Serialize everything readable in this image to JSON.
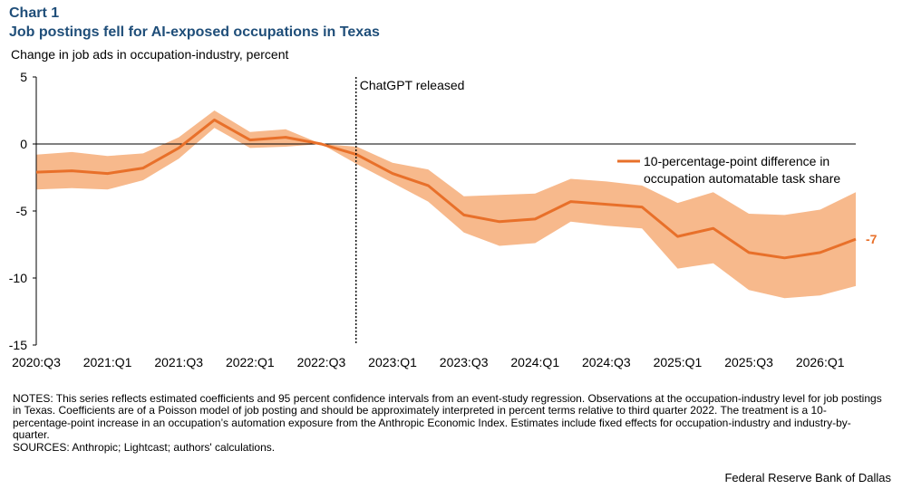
{
  "header": {
    "chart_label": "Chart 1",
    "title": "Job postings fell for AI-exposed occupations in Texas"
  },
  "notes": {
    "text": "NOTES: This series reflects estimated coefficients and 95 percent confidence intervals from an event-study regression. Observations at the occupation-industry level for job postings in Texas. Coefficients are of a Poisson model of job posting and should be approximately interpreted in percent terms relative to third quarter 2022. The treatment is a 10-percentage-point increase in an occupation’s automation exposure from the Anthropic Economic Index. Estimates include fixed effects for occupation-industry and industry-by-quarter.",
    "sources": "SOURCES: Anthropic; Lightcast; authors' calculations."
  },
  "footer": {
    "credit": "Federal Reserve Bank of Dallas"
  },
  "colors": {
    "line": "#e8702a",
    "band": "#f7b98c",
    "title": "#1f4e79",
    "end_label": "#e8702a"
  },
  "chart_data": {
    "type": "line",
    "title": "Job postings fell for AI-exposed occupations in Texas",
    "ylabel": "Change in job ads in occupation-industry,  percent",
    "xlabel": "",
    "ylim": [
      -15,
      5
    ],
    "yticks": [
      5,
      0,
      -5,
      -10,
      -15
    ],
    "x": [
      "2020:Q3",
      "2020:Q4",
      "2021:Q1",
      "2021:Q2",
      "2021:Q3",
      "2021:Q4",
      "2022:Q1",
      "2022:Q2",
      "2022:Q3",
      "2022:Q4",
      "2023:Q1",
      "2023:Q2",
      "2023:Q3",
      "2023:Q4",
      "2024:Q1",
      "2024:Q2",
      "2024:Q3",
      "2024:Q4",
      "2025:Q1",
      "2025:Q2",
      "2025:Q3",
      "2025:Q4",
      "2026:Q1",
      "2026:Q2"
    ],
    "xtick_labels": [
      "2020:Q3",
      "2021:Q1",
      "2021:Q3",
      "2022:Q1",
      "2022:Q3",
      "2023:Q1",
      "2023:Q3",
      "2024:Q1",
      "2024:Q3",
      "2025:Q1",
      "2025:Q3",
      "2026:Q1"
    ],
    "series": [
      {
        "name": "10-percentage-point difference in occupation automatable task share",
        "values": [
          -2.1,
          -2.0,
          -2.2,
          -1.8,
          -0.3,
          1.8,
          0.3,
          0.5,
          0.0,
          -0.8,
          -2.2,
          -3.1,
          -5.3,
          -5.8,
          -5.6,
          -4.3,
          -4.5,
          -4.7,
          -6.9,
          -6.3,
          -8.1,
          -8.5,
          -8.1,
          -7.1
        ],
        "lower": [
          -3.4,
          -3.3,
          -3.4,
          -2.7,
          -1.1,
          1.2,
          -0.3,
          -0.2,
          0.0,
          -1.5,
          -2.9,
          -4.3,
          -6.6,
          -7.6,
          -7.4,
          -5.8,
          -6.1,
          -6.3,
          -9.3,
          -8.9,
          -10.9,
          -11.5,
          -11.3,
          -10.6
        ],
        "upper": [
          -0.8,
          -0.6,
          -0.9,
          -0.7,
          0.5,
          2.5,
          0.9,
          1.1,
          0.0,
          -0.2,
          -1.4,
          -1.9,
          -3.9,
          -3.8,
          -3.7,
          -2.6,
          -2.8,
          -3.1,
          -4.4,
          -3.6,
          -5.2,
          -5.3,
          -4.9,
          -3.6
        ]
      }
    ],
    "legend_lines": [
      "10-percentage-point difference in",
      "occupation automatable task share"
    ],
    "legend_position": "right",
    "annotations": [
      {
        "type": "vline",
        "x": "2022:Q4",
        "label": "ChatGPT released"
      }
    ],
    "end_label": "-7",
    "grid": false
  }
}
